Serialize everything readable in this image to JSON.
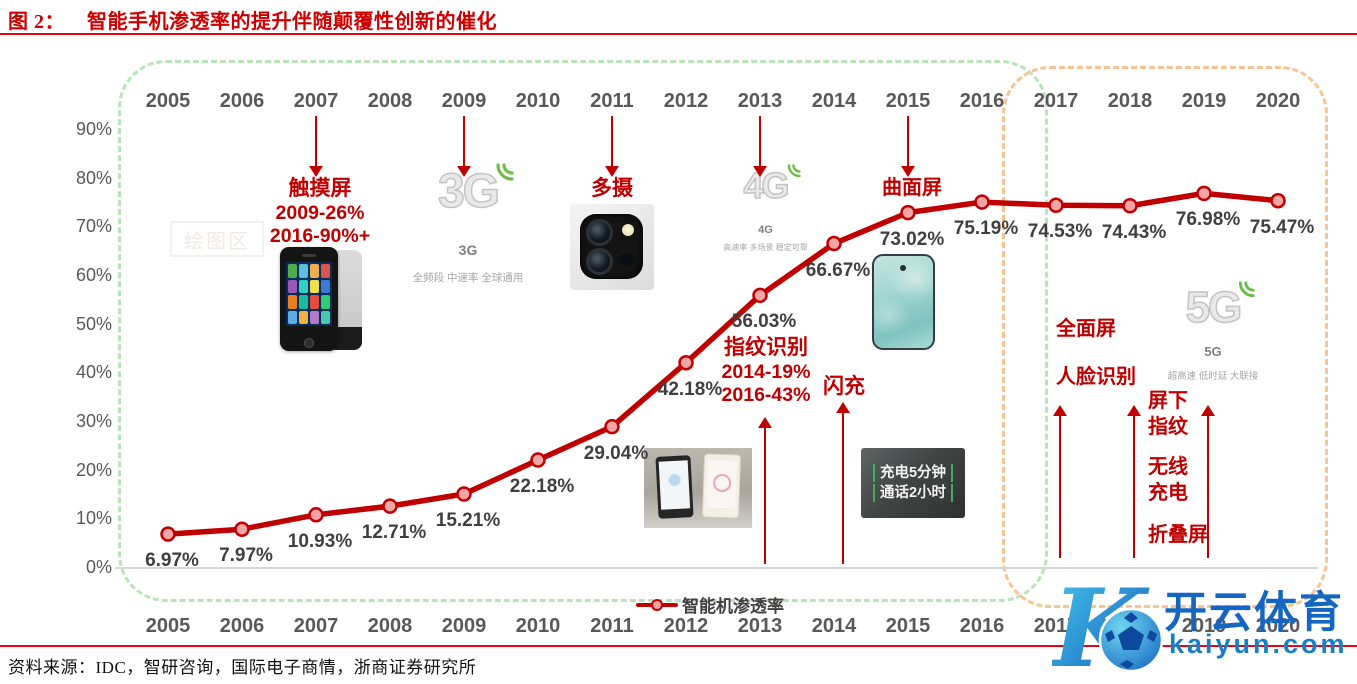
{
  "colors": {
    "series_red": "#c00000",
    "annotation_red": "#c00000",
    "title_red": "#cc0000",
    "divider_red": "#e30613",
    "pre_era_border_green": "#b8e4b8",
    "post_era_border_orange": "#f7c491",
    "axis_text_gray": "#595959",
    "data_label_gray": "#3f3f3f",
    "marker_fill_pink": "#f2a5a5",
    "watermark_blue": "#1566c0"
  },
  "header": {
    "figure_label": "图 2：",
    "title": "智能手机渗透率的提升伴随颠覆性创新的催化"
  },
  "chart_data": {
    "type": "line",
    "title": "智能手机渗透率的提升伴随颠覆性创新的催化",
    "x": [
      "2005",
      "2006",
      "2007",
      "2008",
      "2009",
      "2010",
      "2011",
      "2012",
      "2013",
      "2014",
      "2015",
      "2016",
      "2017",
      "2018",
      "2019",
      "2020"
    ],
    "series": [
      {
        "name": "智能机渗透率",
        "values": [
          6.97,
          7.97,
          10.93,
          12.71,
          15.21,
          22.18,
          29.04,
          42.18,
          56.03,
          66.67,
          73.02,
          75.19,
          74.53,
          74.43,
          76.98,
          75.47
        ]
      }
    ],
    "point_labels": [
      "6.97%",
      "7.97%",
      "10.93%",
      "12.71%",
      "15.21%",
      "22.18%",
      "29.04%",
      "42.18%",
      "56.03%",
      "66.67%",
      "73.02%",
      "75.19%",
      "74.53%",
      "74.43%",
      "76.98%",
      "75.47%"
    ],
    "ylim": [
      0,
      90
    ],
    "yticks": [
      "90%",
      "80%",
      "70%",
      "60%",
      "50%",
      "40%",
      "30%",
      "20%",
      "10%",
      "0%"
    ],
    "grid": false,
    "x_axis_shown_top_and_bottom": true,
    "legend": {
      "label": "智能机渗透率",
      "position": "bottom"
    },
    "line_color": "#c00000"
  },
  "annotations": {
    "top_arrow_years": [
      "2007",
      "2009",
      "2011",
      "2013",
      "2015"
    ],
    "bottom_arrow_years": [
      "2013",
      "2014"
    ],
    "right_arrow_years": [
      "2017",
      "2018",
      "2019"
    ],
    "touchscreen": {
      "title": "触摸屏",
      "stat1": "2009-26%",
      "stat2": "2016-90%+"
    },
    "g3": {
      "glyph": "3G",
      "name": "3G",
      "sub": "全频段 中速率 全球通用"
    },
    "multi_camera": {
      "title": "多摄"
    },
    "g4": {
      "glyph": "4G",
      "name": "4G",
      "sub": "高速率 多场景 稳定可靠"
    },
    "curved_screen": {
      "title": "曲面屏"
    },
    "fingerprint": {
      "title": "指纹识别",
      "stat1": "2014-19%",
      "stat2": "2016-43%"
    },
    "flash_charge": {
      "title": "闪充"
    },
    "charge_photo": {
      "line1": "充电5分钟",
      "line2": "通话2小时"
    },
    "full_screen": {
      "title": "全面屏"
    },
    "face_id": {
      "title": "人脸识别"
    },
    "under_screen_fingerprint": {
      "line1": "屏下",
      "line2": "指纹"
    },
    "wireless_charge": {
      "line1": "无线",
      "line2": "充电"
    },
    "fold_screen": {
      "title": "折叠屏"
    },
    "g5": {
      "glyph": "5G",
      "name": "5G",
      "sub": "超高速 低时延 大联接"
    }
  },
  "plot_area_watermark": "绘图区",
  "footer": {
    "source": "资料来源：IDC，智研咨询，国际电子商情，浙商证券研究所"
  },
  "watermark": {
    "monogram": "K",
    "brand": "开云体育",
    "domain": "kaiyun.com"
  }
}
